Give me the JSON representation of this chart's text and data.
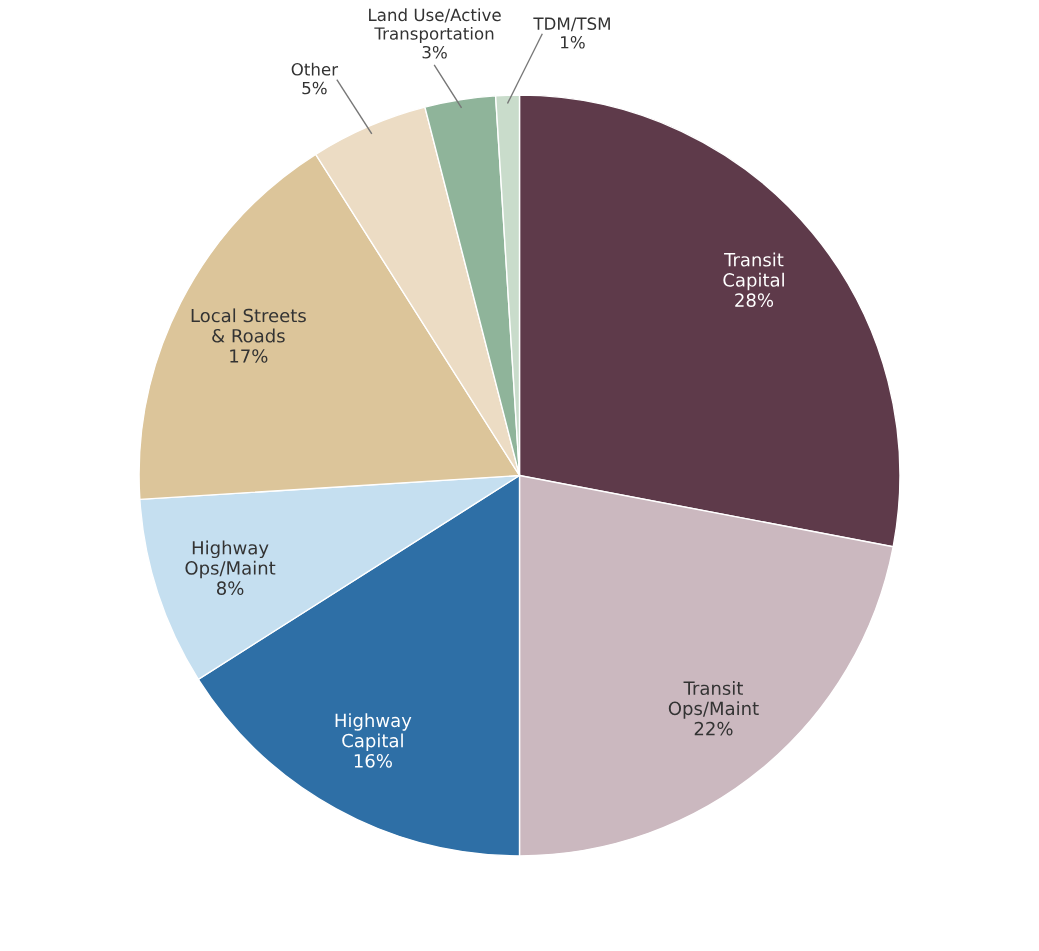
{
  "chart_data": {
    "type": "pie",
    "categories": [
      "Transit\nCapital",
      "Transit\nOps/Maint",
      "Highway\nCapital",
      "Highway\nOps/Maint",
      "Local Streets\n& Roads",
      "Other",
      "Land Use/Active\nTransportation",
      "TDM/TSM"
    ],
    "values": [
      28,
      22,
      16,
      8,
      17,
      5,
      3,
      1
    ],
    "value_labels": [
      "28%",
      "22%",
      "16%",
      "8%",
      "17%",
      "5%",
      "3%",
      "1%"
    ],
    "colors": [
      "#5e3a4a",
      "#cbb8bf",
      "#2e6fa6",
      "#c5dff0",
      "#dcc59a",
      "#ecdcc4",
      "#8fb49a",
      "#c9dccb"
    ]
  }
}
